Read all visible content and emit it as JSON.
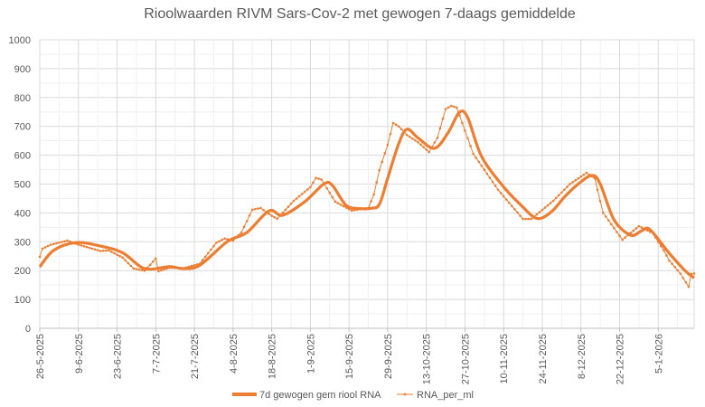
{
  "chart_data": {
    "type": "line",
    "title": "Rioolwaarden RIVM Sars-Cov-2 met gewogen 7-daags gemiddelde",
    "xlabel": "",
    "ylabel": "",
    "ylim": [
      0,
      1000
    ],
    "yticks": [
      "0",
      "100",
      "200",
      "300",
      "400",
      "500",
      "600",
      "700",
      "800",
      "900",
      "1000"
    ],
    "x_unit": "days since 26-5-2025",
    "xlim": [
      0,
      237
    ],
    "xticks": [
      {
        "day": 0,
        "label": "26-5-2025"
      },
      {
        "day": 14,
        "label": "9-6-2025"
      },
      {
        "day": 28,
        "label": "23-6-2025"
      },
      {
        "day": 42,
        "label": "7-7-2025"
      },
      {
        "day": 56,
        "label": "21-7-2025"
      },
      {
        "day": 70,
        "label": "4-8-2025"
      },
      {
        "day": 84,
        "label": "18-8-2025"
      },
      {
        "day": 98,
        "label": "1-9-2025"
      },
      {
        "day": 112,
        "label": "15-9-2025"
      },
      {
        "day": 126,
        "label": "29-9-2025"
      },
      {
        "day": 140,
        "label": "13-10-2025"
      },
      {
        "day": 154,
        "label": "27-10-2025"
      },
      {
        "day": 168,
        "label": "10-11-2025"
      },
      {
        "day": 182,
        "label": "24-11-2025"
      },
      {
        "day": 196,
        "label": "8-12-2025"
      },
      {
        "day": 210,
        "label": "22-12-2025"
      },
      {
        "day": 224,
        "label": "5-1-2026"
      }
    ],
    "grid": true,
    "legend_position": "bottom",
    "series": [
      {
        "name": "7d gewogen gem riool RNA",
        "color": "#ED7D31",
        "style": "thick-smooth",
        "x": [
          0,
          5,
          13,
          22,
          30,
          38,
          47,
          52,
          58,
          68,
          75,
          83,
          88,
          96,
          103,
          106,
          111,
          116,
          120,
          123,
          126,
          130,
          133,
          137,
          143,
          148,
          152,
          155,
          160,
          168,
          175,
          179,
          182,
          186,
          190,
          195,
          200,
          203,
          208,
          214,
          218,
          221,
          228,
          234,
          237
        ],
        "y": [
          213,
          270,
          297,
          285,
          262,
          207,
          214,
          207,
          219,
          301,
          332,
          407,
          392,
          439,
          501,
          495,
          426,
          415,
          416,
          430,
          520,
          640,
          690,
          660,
          624,
          680,
          749,
          730,
          596,
          490,
          420,
          385,
          383,
          410,
          455,
          500,
          530,
          500,
          376,
          323,
          338,
          342,
          260,
          197,
          175
        ]
      },
      {
        "name": "RNA_per_ml",
        "color": "#ED7D31",
        "style": "thin-markers",
        "x": [
          0,
          1,
          4,
          10,
          14,
          22,
          25,
          30,
          34,
          38,
          40,
          42,
          43,
          47,
          52,
          58,
          64,
          67,
          70,
          73,
          77,
          80,
          84,
          86,
          92,
          98,
          100,
          102,
          107,
          113,
          117,
          119,
          121,
          123,
          126,
          128,
          130,
          133,
          137,
          141,
          144,
          147,
          149,
          151,
          157,
          166,
          175,
          178,
          186,
          192,
          198,
          201,
          204,
          211,
          217,
          222,
          226,
          228,
          232,
          235,
          236,
          237
        ],
        "y": [
          248,
          276,
          290,
          304,
          290,
          268,
          270,
          245,
          207,
          200,
          220,
          242,
          198,
          210,
          208,
          224,
          297,
          311,
          304,
          332,
          411,
          417,
          390,
          380,
          442,
          489,
          521,
          516,
          439,
          408,
          415,
          417,
          464,
          548,
          636,
          712,
          700,
          670,
          645,
          611,
          660,
          760,
          771,
          765,
          605,
          480,
          379,
          379,
          442,
          500,
          539,
          520,
          401,
          307,
          354,
          330,
          270,
          235,
          190,
          144,
          188,
          190
        ]
      }
    ]
  }
}
